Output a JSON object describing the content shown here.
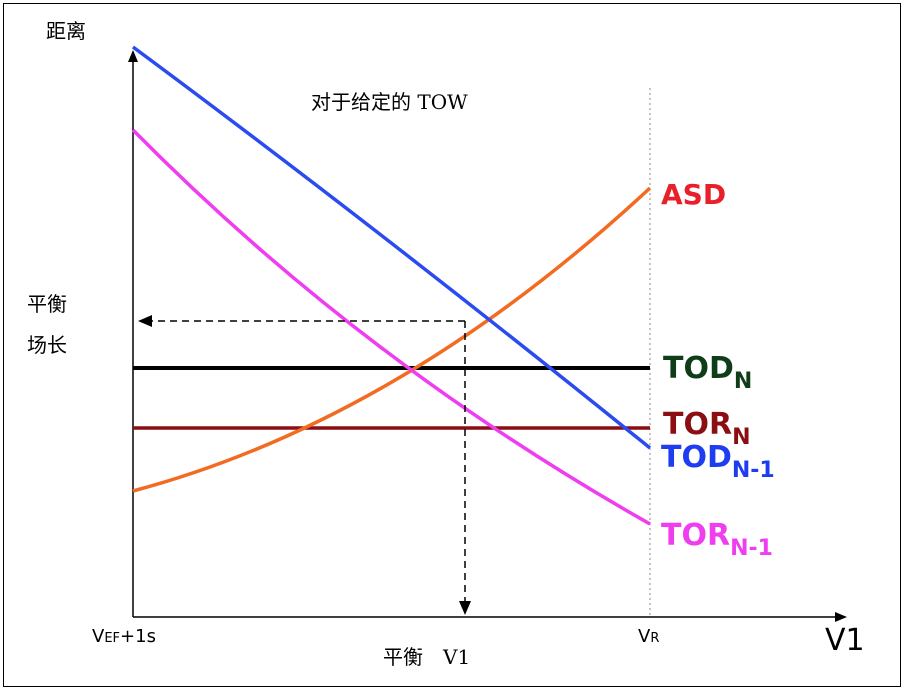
{
  "diagram": {
    "y_axis_label": "距离",
    "x_axis_label": "V1",
    "subtitle": "对于给定的 TOW",
    "balanced_field_length_line1": "平衡",
    "balanced_field_length_line2": "场长",
    "balanced_v1_label": "平衡　V1",
    "x_tick_left": {
      "main": "V",
      "sub": "EF",
      "rest": "+1s"
    },
    "x_tick_right": {
      "main": "V",
      "sub": "R"
    },
    "series": [
      {
        "key": "asd",
        "label": "ASD",
        "sub": "",
        "color": "#f26b22",
        "label_color": "#e8202a"
      },
      {
        "key": "todn",
        "label": "TOD",
        "sub": "N",
        "color": "#000000",
        "label_color": "#0f3d17"
      },
      {
        "key": "torn",
        "label": "TOR",
        "sub": "N",
        "color": "#8b0f12",
        "label_color": "#8b0f12"
      },
      {
        "key": "todn1",
        "label": "TOD",
        "sub": "N-1",
        "color": "#2a4bf0",
        "label_color": "#1f3df0"
      },
      {
        "key": "torn1",
        "label": "TOR",
        "sub": "N-1",
        "color": "#ee3ef0",
        "label_color": "#ee3ef0"
      }
    ]
  }
}
